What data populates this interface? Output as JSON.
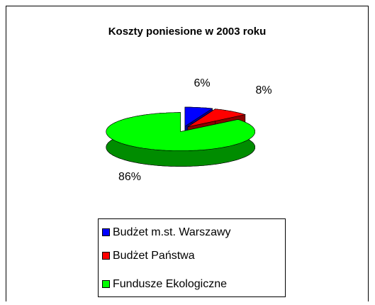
{
  "chart_data": {
    "type": "pie",
    "title": "Koszty poniesione w 2003 roku",
    "categories": [
      "Budżet m.st. Warszawy",
      "Budżet Państwa",
      "Fundusze Ekologiczne"
    ],
    "values": [
      6,
      8,
      86
    ],
    "value_labels": [
      "6%",
      "8%",
      "86%"
    ],
    "colors": [
      "#0000ff",
      "#ff0000",
      "#00ff00"
    ],
    "legend": "bottom"
  }
}
